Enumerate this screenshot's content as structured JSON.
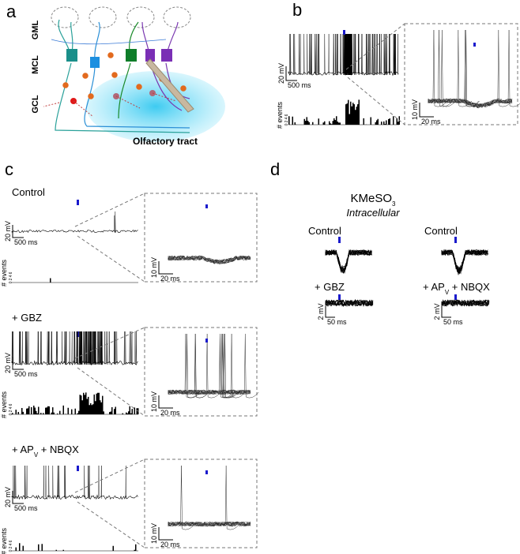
{
  "panel_a": {
    "label": "a",
    "layers": [
      "GML",
      "MCL",
      "GCL"
    ],
    "tract": "Olfactory tract"
  },
  "panel_b": {
    "label": "b",
    "main_y": "20 mV",
    "main_x": "500 ms",
    "hist_label": "# events",
    "hist_ticks": [
      "0",
      "2",
      "4",
      "6"
    ],
    "inset_y": "10 mV",
    "inset_x": "20 ms"
  },
  "panel_c": {
    "label": "c",
    "main_y": "20 mV",
    "main_x": "500 ms",
    "hist_label": "# events",
    "hist_ticks": [
      "0",
      "2",
      "4",
      "6"
    ],
    "inset_y": "10 mV",
    "inset_x": "20 ms",
    "conditions": [
      {
        "parts": [
          "Control"
        ]
      },
      {
        "parts": [
          "+ GBZ"
        ]
      },
      {
        "parts": [
          "+ AP",
          "V",
          " + NBQX"
        ]
      }
    ]
  },
  "panel_d": {
    "label": "d",
    "solution": [
      "KMeSO",
      "3"
    ],
    "recording": "Intracellular",
    "columns": [
      {
        "top": "Control",
        "bottom": [
          "+ GBZ"
        ],
        "scale_y": "2 mV",
        "scale_x": "50 ms"
      },
      {
        "top": "Control",
        "bottom": [
          "+ AP",
          "V",
          " + NBQX"
        ],
        "scale_y": "2 mV",
        "scale_x": "50 ms"
      }
    ]
  }
}
